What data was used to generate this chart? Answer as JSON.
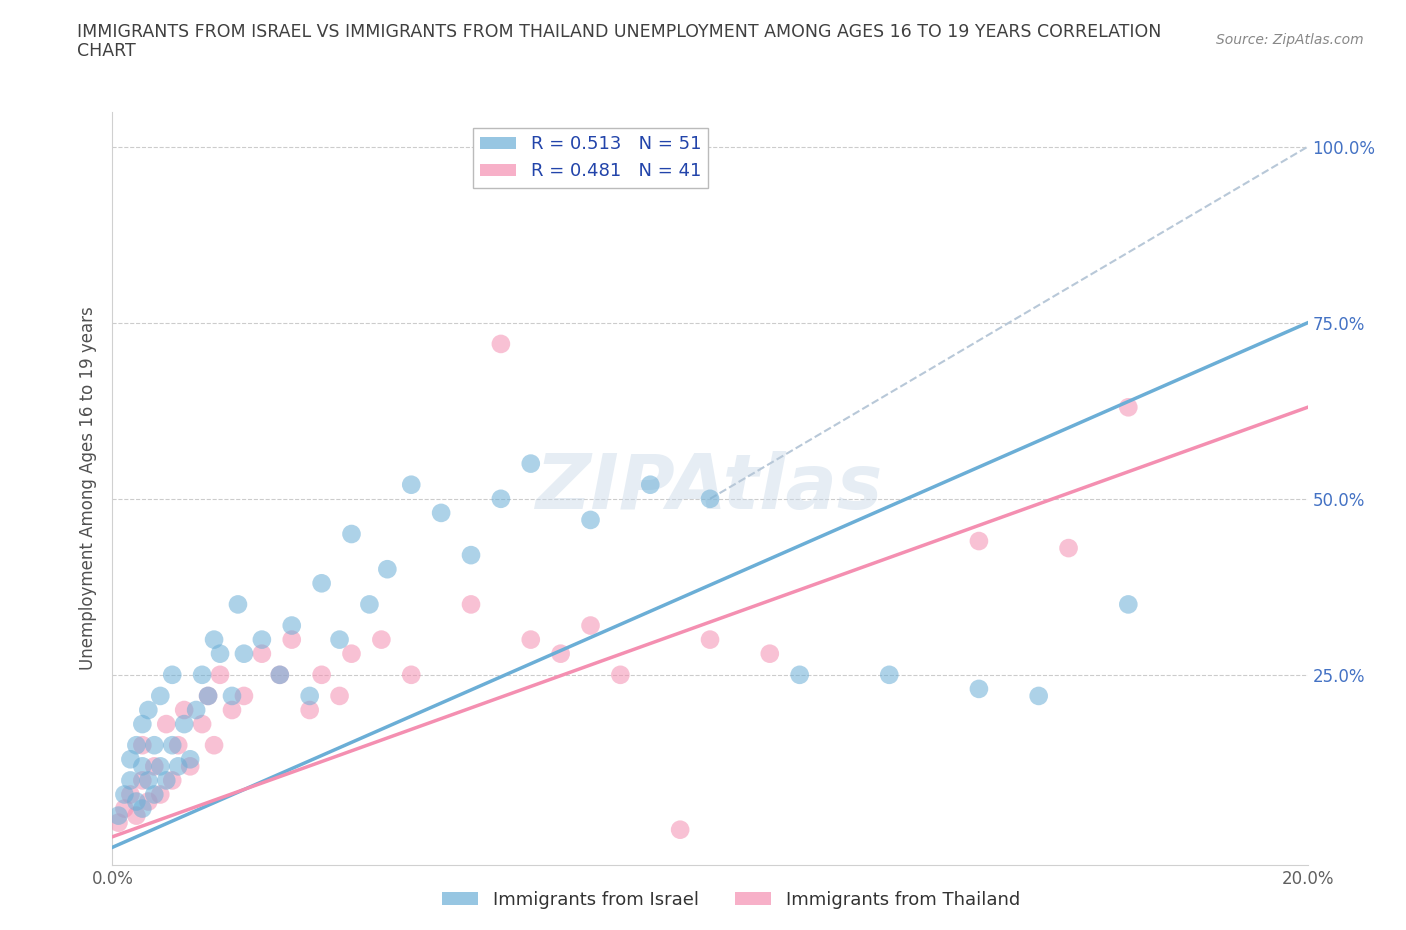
{
  "title_line1": "IMMIGRANTS FROM ISRAEL VS IMMIGRANTS FROM THAILAND UNEMPLOYMENT AMONG AGES 16 TO 19 YEARS CORRELATION",
  "title_line2": "CHART",
  "source_text": "Source: ZipAtlas.com",
  "ylabel": "Unemployment Among Ages 16 to 19 years",
  "xlim": [
    0.0,
    0.2
  ],
  "ylim": [
    -0.02,
    1.05
  ],
  "ytick_positions": [
    0.0,
    0.25,
    0.5,
    0.75,
    1.0
  ],
  "xtick_positions": [
    0.0,
    0.05,
    0.1,
    0.15,
    0.2
  ],
  "israel_color": "#6baed6",
  "thailand_color": "#f48fb1",
  "legend_label_israel": "R = 0.513   N = 51",
  "legend_label_thailand": "R = 0.481   N = 41",
  "bottom_legend_israel": "Immigrants from Israel",
  "bottom_legend_thailand": "Immigrants from Thailand",
  "watermark": "ZIPAtlas",
  "israel_line_x": [
    0.0,
    0.2
  ],
  "israel_line_y": [
    0.005,
    0.75
  ],
  "thailand_line_x": [
    0.0,
    0.2
  ],
  "thailand_line_y": [
    0.02,
    0.63
  ],
  "dashed_line_x": [
    0.1,
    0.2
  ],
  "dashed_line_y": [
    0.5,
    1.0
  ],
  "grid_color": "#cccccc",
  "title_color": "#404040",
  "axis_color": "#505050",
  "tick_color": "#606060",
  "right_tick_color": "#4472c4",
  "israel_x": [
    0.001,
    0.002,
    0.003,
    0.003,
    0.004,
    0.004,
    0.005,
    0.005,
    0.005,
    0.006,
    0.006,
    0.007,
    0.007,
    0.008,
    0.008,
    0.009,
    0.01,
    0.01,
    0.011,
    0.012,
    0.013,
    0.014,
    0.015,
    0.016,
    0.017,
    0.018,
    0.02,
    0.021,
    0.022,
    0.025,
    0.028,
    0.03,
    0.033,
    0.035,
    0.038,
    0.04,
    0.043,
    0.046,
    0.05,
    0.055,
    0.06,
    0.065,
    0.07,
    0.08,
    0.09,
    0.1,
    0.115,
    0.13,
    0.145,
    0.155,
    0.17
  ],
  "israel_y": [
    0.05,
    0.08,
    0.1,
    0.13,
    0.07,
    0.15,
    0.12,
    0.18,
    0.06,
    0.1,
    0.2,
    0.08,
    0.15,
    0.12,
    0.22,
    0.1,
    0.15,
    0.25,
    0.12,
    0.18,
    0.13,
    0.2,
    0.25,
    0.22,
    0.3,
    0.28,
    0.22,
    0.35,
    0.28,
    0.3,
    0.25,
    0.32,
    0.22,
    0.38,
    0.3,
    0.45,
    0.35,
    0.4,
    0.52,
    0.48,
    0.42,
    0.5,
    0.55,
    0.47,
    0.52,
    0.5,
    0.25,
    0.25,
    0.23,
    0.22,
    0.35
  ],
  "thailand_x": [
    0.001,
    0.002,
    0.003,
    0.004,
    0.005,
    0.005,
    0.006,
    0.007,
    0.008,
    0.009,
    0.01,
    0.011,
    0.012,
    0.013,
    0.015,
    0.016,
    0.017,
    0.018,
    0.02,
    0.022,
    0.025,
    0.028,
    0.03,
    0.033,
    0.035,
    0.038,
    0.04,
    0.045,
    0.05,
    0.06,
    0.065,
    0.07,
    0.075,
    0.08,
    0.085,
    0.095,
    0.1,
    0.11,
    0.145,
    0.16,
    0.17
  ],
  "thailand_y": [
    0.04,
    0.06,
    0.08,
    0.05,
    0.1,
    0.15,
    0.07,
    0.12,
    0.08,
    0.18,
    0.1,
    0.15,
    0.2,
    0.12,
    0.18,
    0.22,
    0.15,
    0.25,
    0.2,
    0.22,
    0.28,
    0.25,
    0.3,
    0.2,
    0.25,
    0.22,
    0.28,
    0.3,
    0.25,
    0.35,
    0.72,
    0.3,
    0.28,
    0.32,
    0.25,
    0.03,
    0.3,
    0.28,
    0.44,
    0.43,
    0.63
  ]
}
